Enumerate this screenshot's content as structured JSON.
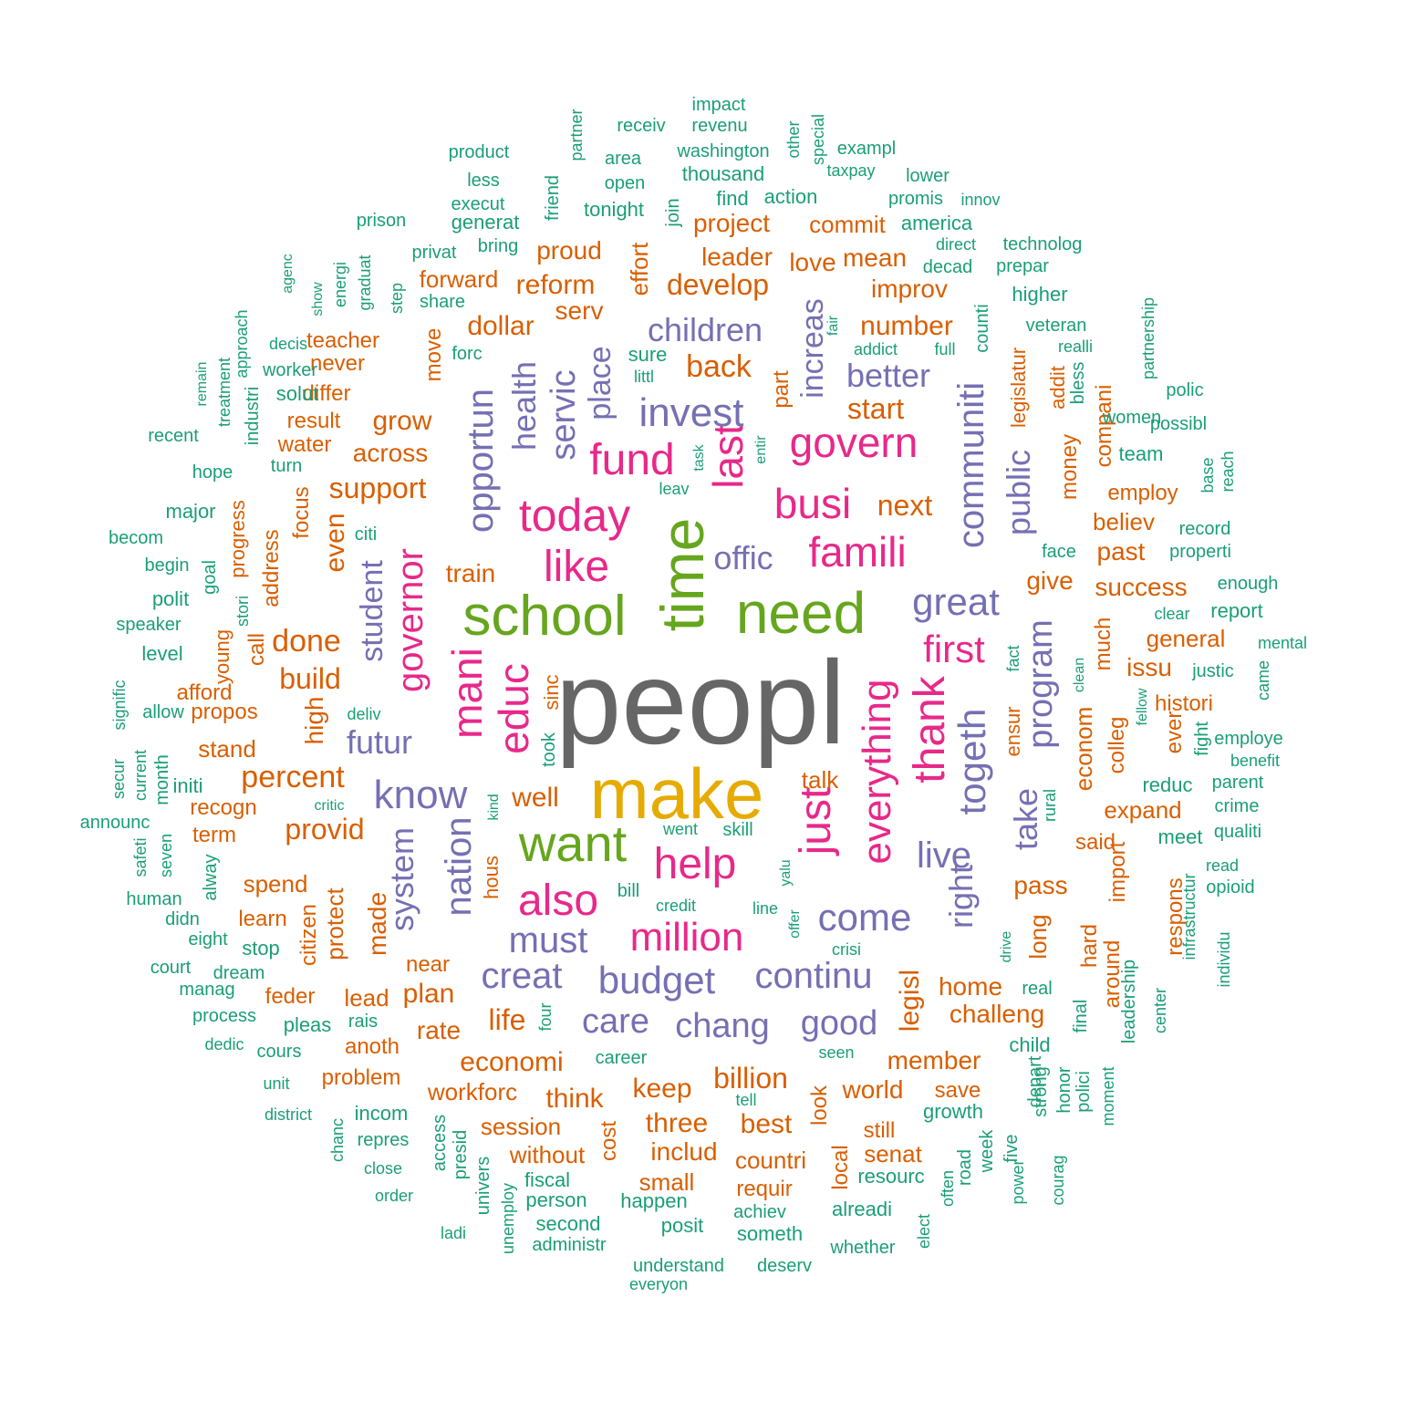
{
  "palette": {
    "t1": "#666666",
    "t2": "#E6AB02",
    "t3": "#66A61E",
    "t4": "#E7298A",
    "t5": "#7570B3",
    "t6": "#D95F02",
    "t7": "#1B9E77"
  },
  "words": [
    {
      "text": "peopl",
      "tier": "t1"
    },
    {
      "text": "make",
      "tier": "t2"
    },
    {
      "text": "time",
      "tier": "t3"
    },
    {
      "text": "need",
      "tier": "t3"
    },
    {
      "text": "school",
      "tier": "t3"
    },
    {
      "text": "want",
      "tier": "t3"
    },
    {
      "text": "today",
      "tier": "t4"
    },
    {
      "text": "fund",
      "tier": "t4"
    },
    {
      "text": "like",
      "tier": "t4"
    },
    {
      "text": "govern",
      "tier": "t4"
    },
    {
      "text": "busi",
      "tier": "t4"
    },
    {
      "text": "famili",
      "tier": "t4"
    },
    {
      "text": "last",
      "tier": "t4"
    },
    {
      "text": "educ",
      "tier": "t4"
    },
    {
      "text": "mani",
      "tier": "t4"
    },
    {
      "text": "help",
      "tier": "t4"
    },
    {
      "text": "just",
      "tier": "t4"
    },
    {
      "text": "thank",
      "tier": "t4"
    },
    {
      "text": "first",
      "tier": "t4"
    },
    {
      "text": "everything",
      "tier": "t4"
    },
    {
      "text": "also",
      "tier": "t4"
    },
    {
      "text": "million",
      "tier": "t4"
    },
    {
      "text": "governor",
      "tier": "t4"
    },
    {
      "text": "invest",
      "tier": "t5"
    },
    {
      "text": "children",
      "tier": "t5"
    },
    {
      "text": "better",
      "tier": "t5"
    },
    {
      "text": "great",
      "tier": "t5"
    },
    {
      "text": "offic",
      "tier": "t5"
    },
    {
      "text": "know",
      "tier": "t5"
    },
    {
      "text": "futur",
      "tier": "t5"
    },
    {
      "text": "come",
      "tier": "t5"
    },
    {
      "text": "must",
      "tier": "t5"
    },
    {
      "text": "budget",
      "tier": "t5"
    },
    {
      "text": "continu",
      "tier": "t5"
    },
    {
      "text": "creat",
      "tier": "t5"
    },
    {
      "text": "care",
      "tier": "t5"
    },
    {
      "text": "chang",
      "tier": "t5"
    },
    {
      "text": "good",
      "tier": "t5"
    },
    {
      "text": "live",
      "tier": "t5"
    },
    {
      "text": "togeth",
      "tier": "t5"
    },
    {
      "text": "program",
      "tier": "t5"
    },
    {
      "text": "communiti",
      "tier": "t5"
    },
    {
      "text": "nation",
      "tier": "t5"
    },
    {
      "text": "system",
      "tier": "t5"
    },
    {
      "text": "student",
      "tier": "t5"
    },
    {
      "text": "opportun",
      "tier": "t5"
    },
    {
      "text": "servic",
      "tier": "t5"
    },
    {
      "text": "place",
      "tier": "t5"
    },
    {
      "text": "health",
      "tier": "t5"
    },
    {
      "text": "increas",
      "tier": "t5"
    },
    {
      "text": "take",
      "tier": "t5"
    },
    {
      "text": "public",
      "tier": "t5"
    },
    {
      "text": "right",
      "tier": "t5"
    },
    {
      "text": "develop",
      "tier": "t6"
    },
    {
      "text": "back",
      "tier": "t6"
    },
    {
      "text": "start",
      "tier": "t6"
    },
    {
      "text": "next",
      "tier": "t6"
    },
    {
      "text": "support",
      "tier": "t6"
    },
    {
      "text": "done",
      "tier": "t6"
    },
    {
      "text": "build",
      "tier": "t6"
    },
    {
      "text": "percent",
      "tier": "t6"
    },
    {
      "text": "provid",
      "tier": "t6"
    },
    {
      "text": "grow",
      "tier": "t6"
    },
    {
      "text": "across",
      "tier": "t6"
    },
    {
      "text": "number",
      "tier": "t6"
    },
    {
      "text": "improv",
      "tier": "t6"
    },
    {
      "text": "dollar",
      "tier": "t6"
    },
    {
      "text": "serv",
      "tier": "t6"
    },
    {
      "text": "reform",
      "tier": "t6"
    },
    {
      "text": "forward",
      "tier": "t6"
    },
    {
      "text": "proud",
      "tier": "t6"
    },
    {
      "text": "project",
      "tier": "t6"
    },
    {
      "text": "leader",
      "tier": "t6"
    },
    {
      "text": "love",
      "tier": "t6"
    },
    {
      "text": "mean",
      "tier": "t6"
    },
    {
      "text": "commit",
      "tier": "t6"
    },
    {
      "text": "well",
      "tier": "t6"
    },
    {
      "text": "talk",
      "tier": "t6"
    },
    {
      "text": "train",
      "tier": "t6"
    },
    {
      "text": "give",
      "tier": "t6"
    },
    {
      "text": "pass",
      "tier": "t6"
    },
    {
      "text": "success",
      "tier": "t6"
    },
    {
      "text": "past",
      "tier": "t6"
    },
    {
      "text": "believ",
      "tier": "t6"
    },
    {
      "text": "employ",
      "tier": "t6"
    },
    {
      "text": "general",
      "tier": "t6"
    },
    {
      "text": "issu",
      "tier": "t6"
    },
    {
      "text": "histori",
      "tier": "t6"
    },
    {
      "text": "expand",
      "tier": "t6"
    },
    {
      "text": "said",
      "tier": "t6"
    },
    {
      "text": "home",
      "tier": "t6"
    },
    {
      "text": "challeng",
      "tier": "t6"
    },
    {
      "text": "member",
      "tier": "t6"
    },
    {
      "text": "world",
      "tier": "t6"
    },
    {
      "text": "save",
      "tier": "t6"
    },
    {
      "text": "billion",
      "tier": "t6"
    },
    {
      "text": "keep",
      "tier": "t6"
    },
    {
      "text": "think",
      "tier": "t6"
    },
    {
      "text": "economi",
      "tier": "t6"
    },
    {
      "text": "workforc",
      "tier": "t6"
    },
    {
      "text": "session",
      "tier": "t6"
    },
    {
      "text": "three",
      "tier": "t6"
    },
    {
      "text": "best",
      "tier": "t6"
    },
    {
      "text": "includ",
      "tier": "t6"
    },
    {
      "text": "without",
      "tier": "t6"
    },
    {
      "text": "small",
      "tier": "t6"
    },
    {
      "text": "countri",
      "tier": "t6"
    },
    {
      "text": "requir",
      "tier": "t6"
    },
    {
      "text": "senat",
      "tier": "t6"
    },
    {
      "text": "still",
      "tier": "t6"
    },
    {
      "text": "life",
      "tier": "t6"
    },
    {
      "text": "plan",
      "tier": "t6"
    },
    {
      "text": "rate",
      "tier": "t6"
    },
    {
      "text": "near",
      "tier": "t6"
    },
    {
      "text": "lead",
      "tier": "t6"
    },
    {
      "text": "anoth",
      "tier": "t6"
    },
    {
      "text": "problem",
      "tier": "t6"
    },
    {
      "text": "feder",
      "tier": "t6"
    },
    {
      "text": "learn",
      "tier": "t6"
    },
    {
      "text": "spend",
      "tier": "t6"
    },
    {
      "text": "term",
      "tier": "t6"
    },
    {
      "text": "recogn",
      "tier": "t6"
    },
    {
      "text": "stand",
      "tier": "t6"
    },
    {
      "text": "propos",
      "tier": "t6"
    },
    {
      "text": "afford",
      "tier": "t6"
    },
    {
      "text": "result",
      "tier": "t6"
    },
    {
      "text": "water",
      "tier": "t6"
    },
    {
      "text": "never",
      "tier": "t6"
    },
    {
      "text": "differ",
      "tier": "t6"
    },
    {
      "text": "teacher",
      "tier": "t6"
    },
    {
      "text": "even",
      "tier": "t6"
    },
    {
      "text": "high",
      "tier": "t6"
    },
    {
      "text": "made",
      "tier": "t6"
    },
    {
      "text": "protect",
      "tier": "t6"
    },
    {
      "text": "citizen",
      "tier": "t6"
    },
    {
      "text": "address",
      "tier": "t6"
    },
    {
      "text": "focus",
      "tier": "t6"
    },
    {
      "text": "call",
      "tier": "t6"
    },
    {
      "text": "move",
      "tier": "t6"
    },
    {
      "text": "effort",
      "tier": "t6"
    },
    {
      "text": "legisl",
      "tier": "t6"
    },
    {
      "text": "long",
      "tier": "t6"
    },
    {
      "text": "money",
      "tier": "t6"
    },
    {
      "text": "much",
      "tier": "t6"
    },
    {
      "text": "econom",
      "tier": "t6"
    },
    {
      "text": "colleg",
      "tier": "t6"
    },
    {
      "text": "hard",
      "tier": "t6"
    },
    {
      "text": "around",
      "tier": "t6"
    },
    {
      "text": "import",
      "tier": "t6"
    },
    {
      "text": "respons",
      "tier": "t6"
    },
    {
      "text": "ever",
      "tier": "t6"
    },
    {
      "text": "ensur",
      "tier": "t6"
    },
    {
      "text": "addit",
      "tier": "t6"
    },
    {
      "text": "compani",
      "tier": "t6"
    },
    {
      "text": "part",
      "tier": "t6"
    },
    {
      "text": "look",
      "tier": "t6"
    },
    {
      "text": "local",
      "tier": "t6"
    },
    {
      "text": "cost",
      "tier": "t6"
    },
    {
      "text": "hous",
      "tier": "t6"
    },
    {
      "text": "sinc",
      "tier": "t6"
    },
    {
      "text": "progress",
      "tier": "t6"
    },
    {
      "text": "young",
      "tier": "t6"
    },
    {
      "text": "legislatur",
      "tier": "t6"
    },
    {
      "text": "impact",
      "tier": "t7"
    },
    {
      "text": "receiv",
      "tier": "t7"
    },
    {
      "text": "revenu",
      "tier": "t7"
    },
    {
      "text": "product",
      "tier": "t7"
    },
    {
      "text": "area",
      "tier": "t7"
    },
    {
      "text": "washington",
      "tier": "t7"
    },
    {
      "text": "exampl",
      "tier": "t7"
    },
    {
      "text": "less",
      "tier": "t7"
    },
    {
      "text": "open",
      "tier": "t7"
    },
    {
      "text": "thousand",
      "tier": "t7"
    },
    {
      "text": "taxpay",
      "tier": "t7"
    },
    {
      "text": "lower",
      "tier": "t7"
    },
    {
      "text": "execut",
      "tier": "t7"
    },
    {
      "text": "find",
      "tier": "t7"
    },
    {
      "text": "action",
      "tier": "t7"
    },
    {
      "text": "promis",
      "tier": "t7"
    },
    {
      "text": "innov",
      "tier": "t7"
    },
    {
      "text": "tonight",
      "tier": "t7"
    },
    {
      "text": "prison",
      "tier": "t7"
    },
    {
      "text": "generat",
      "tier": "t7"
    },
    {
      "text": "america",
      "tier": "t7"
    },
    {
      "text": "privat",
      "tier": "t7"
    },
    {
      "text": "bring",
      "tier": "t7"
    },
    {
      "text": "direct",
      "tier": "t7"
    },
    {
      "text": "technolog",
      "tier": "t7"
    },
    {
      "text": "decad",
      "tier": "t7"
    },
    {
      "text": "prepar",
      "tier": "t7"
    },
    {
      "text": "share",
      "tier": "t7"
    },
    {
      "text": "higher",
      "tier": "t7"
    },
    {
      "text": "veteran",
      "tier": "t7"
    },
    {
      "text": "decis",
      "tier": "t7"
    },
    {
      "text": "forc",
      "tier": "t7"
    },
    {
      "text": "sure",
      "tier": "t7"
    },
    {
      "text": "addict",
      "tier": "t7"
    },
    {
      "text": "full",
      "tier": "t7"
    },
    {
      "text": "realli",
      "tier": "t7"
    },
    {
      "text": "worker",
      "tier": "t7"
    },
    {
      "text": "littl",
      "tier": "t7"
    },
    {
      "text": "solut",
      "tier": "t7"
    },
    {
      "text": "polic",
      "tier": "t7"
    },
    {
      "text": "women",
      "tier": "t7"
    },
    {
      "text": "recent",
      "tier": "t7"
    },
    {
      "text": "possibl",
      "tier": "t7"
    },
    {
      "text": "team",
      "tier": "t7"
    },
    {
      "text": "hope",
      "tier": "t7"
    },
    {
      "text": "turn",
      "tier": "t7"
    },
    {
      "text": "leav",
      "tier": "t7"
    },
    {
      "text": "major",
      "tier": "t7"
    },
    {
      "text": "becom",
      "tier": "t7"
    },
    {
      "text": "citi",
      "tier": "t7"
    },
    {
      "text": "face",
      "tier": "t7"
    },
    {
      "text": "record",
      "tier": "t7"
    },
    {
      "text": "properti",
      "tier": "t7"
    },
    {
      "text": "begin",
      "tier": "t7"
    },
    {
      "text": "enough",
      "tier": "t7"
    },
    {
      "text": "polit",
      "tier": "t7"
    },
    {
      "text": "clear",
      "tier": "t7"
    },
    {
      "text": "report",
      "tier": "t7"
    },
    {
      "text": "speaker",
      "tier": "t7"
    },
    {
      "text": "mental",
      "tier": "t7"
    },
    {
      "text": "level",
      "tier": "t7"
    },
    {
      "text": "justic",
      "tier": "t7"
    },
    {
      "text": "allow",
      "tier": "t7"
    },
    {
      "text": "deliv",
      "tier": "t7"
    },
    {
      "text": "employe",
      "tier": "t7"
    },
    {
      "text": "benefit",
      "tier": "t7"
    },
    {
      "text": "parent",
      "tier": "t7"
    },
    {
      "text": "reduc",
      "tier": "t7"
    },
    {
      "text": "initi",
      "tier": "t7"
    },
    {
      "text": "critic",
      "tier": "t7"
    },
    {
      "text": "crime",
      "tier": "t7"
    },
    {
      "text": "announc",
      "tier": "t7"
    },
    {
      "text": "went",
      "tier": "t7"
    },
    {
      "text": "skill",
      "tier": "t7"
    },
    {
      "text": "qualiti",
      "tier": "t7"
    },
    {
      "text": "meet",
      "tier": "t7"
    },
    {
      "text": "read",
      "tier": "t7"
    },
    {
      "text": "opioid",
      "tier": "t7"
    },
    {
      "text": "human",
      "tier": "t7"
    },
    {
      "text": "bill",
      "tier": "t7"
    },
    {
      "text": "credit",
      "tier": "t7"
    },
    {
      "text": "line",
      "tier": "t7"
    },
    {
      "text": "didn",
      "tier": "t7"
    },
    {
      "text": "eight",
      "tier": "t7"
    },
    {
      "text": "stop",
      "tier": "t7"
    },
    {
      "text": "court",
      "tier": "t7"
    },
    {
      "text": "dream",
      "tier": "t7"
    },
    {
      "text": "crisi",
      "tier": "t7"
    },
    {
      "text": "manag",
      "tier": "t7"
    },
    {
      "text": "real",
      "tier": "t7"
    },
    {
      "text": "process",
      "tier": "t7"
    },
    {
      "text": "pleas",
      "tier": "t7"
    },
    {
      "text": "rais",
      "tier": "t7"
    },
    {
      "text": "dedic",
      "tier": "t7"
    },
    {
      "text": "cours",
      "tier": "t7"
    },
    {
      "text": "career",
      "tier": "t7"
    },
    {
      "text": "child",
      "tier": "t7"
    },
    {
      "text": "seen",
      "tier": "t7"
    },
    {
      "text": "unit",
      "tier": "t7"
    },
    {
      "text": "district",
      "tier": "t7"
    },
    {
      "text": "incom",
      "tier": "t7"
    },
    {
      "text": "tell",
      "tier": "t7"
    },
    {
      "text": "growth",
      "tier": "t7"
    },
    {
      "text": "repres",
      "tier": "t7"
    },
    {
      "text": "close",
      "tier": "t7"
    },
    {
      "text": "fiscal",
      "tier": "t7"
    },
    {
      "text": "resourc",
      "tier": "t7"
    },
    {
      "text": "order",
      "tier": "t7"
    },
    {
      "text": "person",
      "tier": "t7"
    },
    {
      "text": "happen",
      "tier": "t7"
    },
    {
      "text": "alreadi",
      "tier": "t7"
    },
    {
      "text": "achiev",
      "tier": "t7"
    },
    {
      "text": "second",
      "tier": "t7"
    },
    {
      "text": "posit",
      "tier": "t7"
    },
    {
      "text": "ladi",
      "tier": "t7"
    },
    {
      "text": "someth",
      "tier": "t7"
    },
    {
      "text": "administr",
      "tier": "t7"
    },
    {
      "text": "whether",
      "tier": "t7"
    },
    {
      "text": "understand",
      "tier": "t7"
    },
    {
      "text": "deserv",
      "tier": "t7"
    },
    {
      "text": "everyon",
      "tier": "t7"
    },
    {
      "text": "partner",
      "tier": "t7"
    },
    {
      "text": "other",
      "tier": "t7"
    },
    {
      "text": "special",
      "tier": "t7"
    },
    {
      "text": "friend",
      "tier": "t7"
    },
    {
      "text": "join",
      "tier": "t7"
    },
    {
      "text": "agenc",
      "tier": "t7"
    },
    {
      "text": "show",
      "tier": "t7"
    },
    {
      "text": "energi",
      "tier": "t7"
    },
    {
      "text": "graduat",
      "tier": "t7"
    },
    {
      "text": "step",
      "tier": "t7"
    },
    {
      "text": "approach",
      "tier": "t7"
    },
    {
      "text": "remain",
      "tier": "t7"
    },
    {
      "text": "treatment",
      "tier": "t7"
    },
    {
      "text": "industri",
      "tier": "t7"
    },
    {
      "text": "fair",
      "tier": "t7"
    },
    {
      "text": "counti",
      "tier": "t7"
    },
    {
      "text": "partnership",
      "tier": "t7"
    },
    {
      "text": "bless",
      "tier": "t7"
    },
    {
      "text": "task",
      "tier": "t7"
    },
    {
      "text": "entir",
      "tier": "t7"
    },
    {
      "text": "base",
      "tier": "t7"
    },
    {
      "text": "reach",
      "tier": "t7"
    },
    {
      "text": "goal",
      "tier": "t7"
    },
    {
      "text": "stori",
      "tier": "t7"
    },
    {
      "text": "fact",
      "tier": "t7"
    },
    {
      "text": "clean",
      "tier": "t7"
    },
    {
      "text": "came",
      "tier": "t7"
    },
    {
      "text": "signific",
      "tier": "t7"
    },
    {
      "text": "fellow",
      "tier": "t7"
    },
    {
      "text": "fight",
      "tier": "t7"
    },
    {
      "text": "took",
      "tier": "t7"
    },
    {
      "text": "month",
      "tier": "t7"
    },
    {
      "text": "current",
      "tier": "t7"
    },
    {
      "text": "secur",
      "tier": "t7"
    },
    {
      "text": "kind",
      "tier": "t7"
    },
    {
      "text": "rural",
      "tier": "t7"
    },
    {
      "text": "safeti",
      "tier": "t7"
    },
    {
      "text": "seven",
      "tier": "t7"
    },
    {
      "text": "alway",
      "tier": "t7"
    },
    {
      "text": "yalu",
      "tier": "t7"
    },
    {
      "text": "offer",
      "tier": "t7"
    },
    {
      "text": "infrastructur",
      "tier": "t7"
    },
    {
      "text": "individu",
      "tier": "t7"
    },
    {
      "text": "drive",
      "tier": "t7"
    },
    {
      "text": "leadership",
      "tier": "t7"
    },
    {
      "text": "center",
      "tier": "t7"
    },
    {
      "text": "final",
      "tier": "t7"
    },
    {
      "text": "depart",
      "tier": "t7"
    },
    {
      "text": "strong",
      "tier": "t7"
    },
    {
      "text": "honor",
      "tier": "t7"
    },
    {
      "text": "polici",
      "tier": "t7"
    },
    {
      "text": "moment",
      "tier": "t7"
    },
    {
      "text": "four",
      "tier": "t7"
    },
    {
      "text": "access",
      "tier": "t7"
    },
    {
      "text": "presid",
      "tier": "t7"
    },
    {
      "text": "univers",
      "tier": "t7"
    },
    {
      "text": "unemploy",
      "tier": "t7"
    },
    {
      "text": "chanc",
      "tier": "t7"
    },
    {
      "text": "elect",
      "tier": "t7"
    },
    {
      "text": "often",
      "tier": "t7"
    },
    {
      "text": "road",
      "tier": "t7"
    },
    {
      "text": "week",
      "tier": "t7"
    },
    {
      "text": "five",
      "tier": "t7"
    },
    {
      "text": "power",
      "tier": "t7"
    },
    {
      "text": "courag",
      "tier": "t7"
    }
  ]
}
